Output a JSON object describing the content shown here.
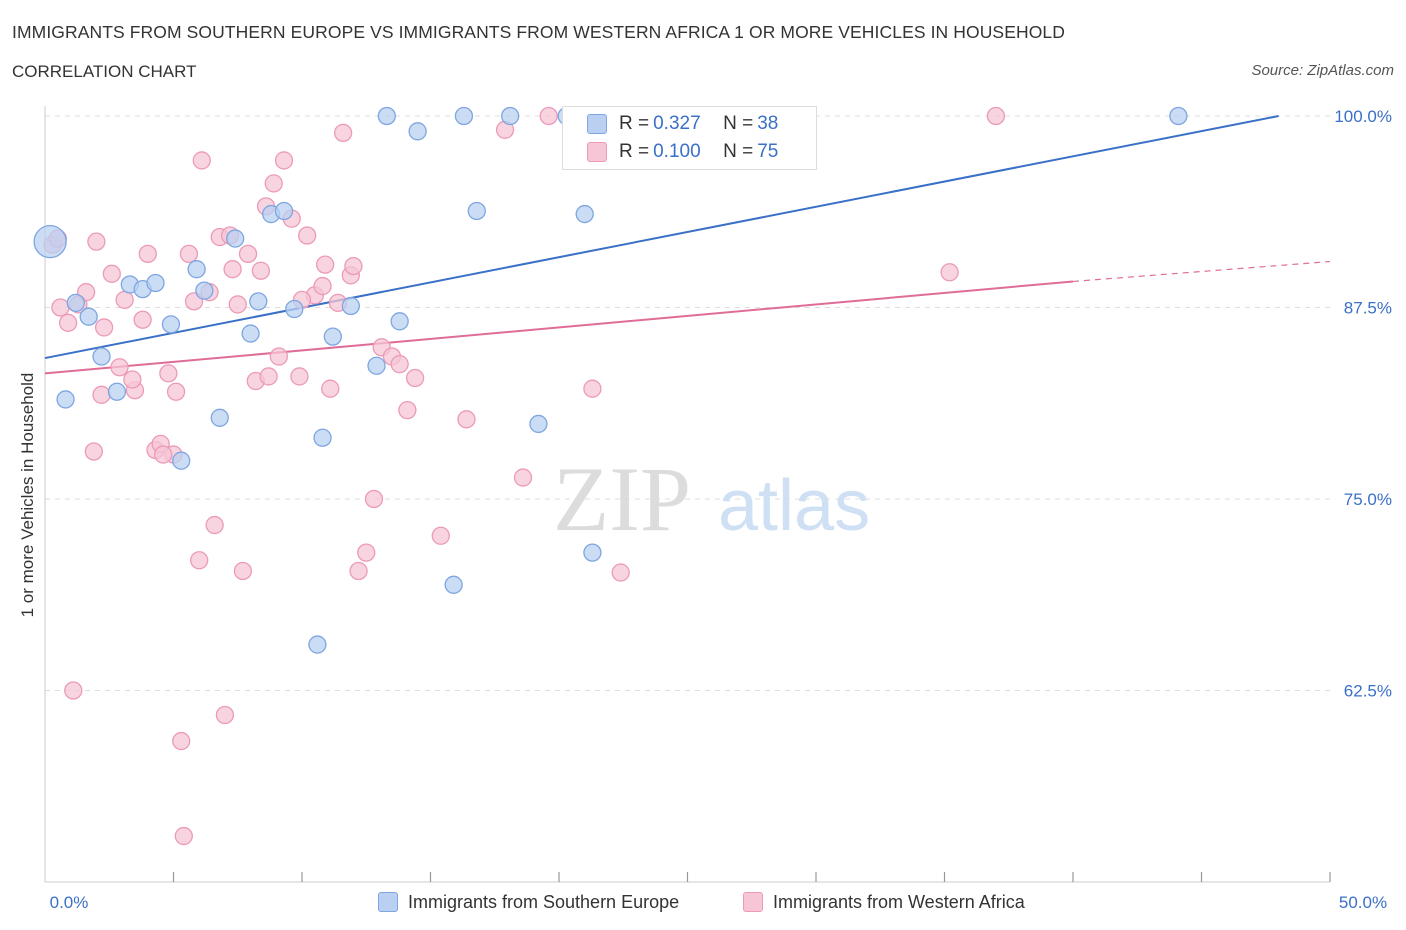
{
  "header": {
    "title": "IMMIGRANTS FROM SOUTHERN EUROPE VS IMMIGRANTS FROM WESTERN AFRICA 1 OR MORE VEHICLES IN HOUSEHOLD",
    "subtitle": "CORRELATION CHART",
    "source": "Source: ZipAtlas.com"
  },
  "watermark": {
    "zip": "ZIP",
    "atlas": "atlas"
  },
  "legend": {
    "blue": {
      "r_label": "R = ",
      "r_value": "0.327",
      "n_label": "N = ",
      "n_value": "38"
    },
    "pink": {
      "r_label": "R = ",
      "r_value": "0.100",
      "n_label": "N = ",
      "n_value": "75"
    }
  },
  "colors": {
    "blue": "#3a70c7",
    "blue_fill": "#b9d0f2",
    "blue_stroke": "#7ea6e0",
    "pink": "#e06c98",
    "pink_fill": "#f6c6d6",
    "pink_stroke": "#ec9ab7",
    "grid": "#dddddd",
    "axis_text": "#3a70c7"
  },
  "chart_data": {
    "type": "scatter",
    "title": "IMMIGRANTS FROM SOUTHERN EUROPE VS IMMIGRANTS FROM WESTERN AFRICA 1 OR MORE VEHICLES IN HOUSEHOLD",
    "subtitle": "CORRELATION CHART",
    "xlabel": "",
    "ylabel": "1 or more Vehicles in Household",
    "xlim": [
      0,
      50
    ],
    "ylim": [
      50,
      100
    ],
    "x_tick_labels": [
      "0.0%",
      "50.0%"
    ],
    "y_ticks": [
      62.5,
      75.0,
      87.5,
      100.0
    ],
    "y_tick_labels": [
      "62.5%",
      "75.0%",
      "87.5%",
      "100.0%"
    ],
    "grid": true,
    "legend_position": "top-center",
    "series": [
      {
        "name": "Immigrants from Southern Europe",
        "color": "#3a70c7",
        "points": [
          [
            0.2,
            91.8
          ],
          [
            0.8,
            81.5
          ],
          [
            1.2,
            87.8
          ],
          [
            1.7,
            86.9
          ],
          [
            2.2,
            84.3
          ],
          [
            2.8,
            82.0
          ],
          [
            3.3,
            89.0
          ],
          [
            3.8,
            88.7
          ],
          [
            4.3,
            89.1
          ],
          [
            4.9,
            86.4
          ],
          [
            5.3,
            77.5
          ],
          [
            5.9,
            90.0
          ],
          [
            6.2,
            88.6
          ],
          [
            6.8,
            80.3
          ],
          [
            7.4,
            92.0
          ],
          [
            8.0,
            85.8
          ],
          [
            8.3,
            87.9
          ],
          [
            8.8,
            93.6
          ],
          [
            9.3,
            93.8
          ],
          [
            9.7,
            87.4
          ],
          [
            10.8,
            79.0
          ],
          [
            11.2,
            85.6
          ],
          [
            11.9,
            87.6
          ],
          [
            12.9,
            83.7
          ],
          [
            13.3,
            100.0
          ],
          [
            13.8,
            86.6
          ],
          [
            14.5,
            99.0
          ],
          [
            15.9,
            69.4
          ],
          [
            16.3,
            100.0
          ],
          [
            16.8,
            93.8
          ],
          [
            18.1,
            100.0
          ],
          [
            19.2,
            79.9
          ],
          [
            20.3,
            100.0
          ],
          [
            21.0,
            93.6
          ],
          [
            21.3,
            71.5
          ],
          [
            10.6,
            65.5
          ],
          [
            22.5,
            100.0
          ],
          [
            44.1,
            100.0
          ]
        ]
      },
      {
        "name": "Immigrants from Western Africa",
        "color": "#e06c98",
        "points": [
          [
            0.3,
            91.6
          ],
          [
            0.6,
            87.5
          ],
          [
            0.9,
            86.5
          ],
          [
            1.1,
            62.5
          ],
          [
            1.3,
            87.7
          ],
          [
            1.6,
            88.5
          ],
          [
            1.9,
            78.1
          ],
          [
            2.0,
            91.8
          ],
          [
            2.3,
            86.2
          ],
          [
            2.6,
            89.7
          ],
          [
            2.9,
            83.6
          ],
          [
            3.1,
            88.0
          ],
          [
            3.5,
            82.1
          ],
          [
            3.8,
            86.7
          ],
          [
            4.0,
            91.0
          ],
          [
            4.3,
            78.2
          ],
          [
            4.5,
            78.6
          ],
          [
            4.8,
            83.2
          ],
          [
            5.0,
            77.9
          ],
          [
            5.3,
            59.2
          ],
          [
            5.6,
            91.0
          ],
          [
            5.8,
            87.9
          ],
          [
            6.1,
            97.1
          ],
          [
            6.4,
            88.5
          ],
          [
            6.6,
            73.3
          ],
          [
            6.8,
            92.1
          ],
          [
            7.0,
            60.9
          ],
          [
            7.2,
            92.2
          ],
          [
            7.5,
            87.7
          ],
          [
            7.7,
            70.3
          ],
          [
            7.9,
            91.0
          ],
          [
            8.2,
            82.7
          ],
          [
            8.4,
            89.9
          ],
          [
            8.6,
            94.1
          ],
          [
            8.9,
            95.6
          ],
          [
            9.1,
            84.3
          ],
          [
            9.3,
            97.1
          ],
          [
            9.6,
            93.3
          ],
          [
            9.9,
            83.0
          ],
          [
            10.2,
            92.2
          ],
          [
            10.5,
            88.3
          ],
          [
            10.8,
            88.9
          ],
          [
            11.1,
            82.2
          ],
          [
            11.4,
            87.8
          ],
          [
            11.6,
            98.9
          ],
          [
            11.9,
            89.6
          ],
          [
            12.2,
            70.3
          ],
          [
            12.5,
            71.5
          ],
          [
            12.8,
            75.0
          ],
          [
            13.1,
            84.9
          ],
          [
            13.5,
            84.3
          ],
          [
            14.1,
            80.8
          ],
          [
            14.4,
            82.9
          ],
          [
            15.4,
            72.6
          ],
          [
            16.4,
            80.2
          ],
          [
            17.9,
            99.1
          ],
          [
            18.6,
            76.4
          ],
          [
            19.6,
            100.0
          ],
          [
            21.3,
            82.2
          ],
          [
            22.4,
            70.2
          ],
          [
            35.2,
            89.8
          ],
          [
            37.0,
            100.0
          ],
          [
            0.5,
            92.0
          ],
          [
            3.4,
            82.8
          ],
          [
            4.6,
            77.9
          ],
          [
            5.1,
            82.0
          ],
          [
            6.0,
            71.0
          ],
          [
            7.3,
            90.0
          ],
          [
            8.7,
            83.0
          ],
          [
            10.0,
            88.0
          ],
          [
            10.9,
            90.3
          ],
          [
            12.0,
            90.2
          ],
          [
            13.8,
            83.8
          ],
          [
            5.4,
            53.0
          ],
          [
            2.2,
            81.8
          ]
        ]
      }
    ],
    "trend_lines": [
      {
        "series": "Immigrants from Southern Europe",
        "x": [
          0,
          48
        ],
        "y": [
          84.2,
          100.0
        ]
      },
      {
        "series": "Immigrants from Western Africa",
        "x": [
          0,
          40
        ],
        "y": [
          83.2,
          89.2
        ],
        "dashed_extension_to": [
          50,
          90.5
        ]
      }
    ]
  },
  "bottom_legend": {
    "blue_label": "Immigrants from Southern Europe",
    "pink_label": "Immigrants from Western Africa"
  }
}
